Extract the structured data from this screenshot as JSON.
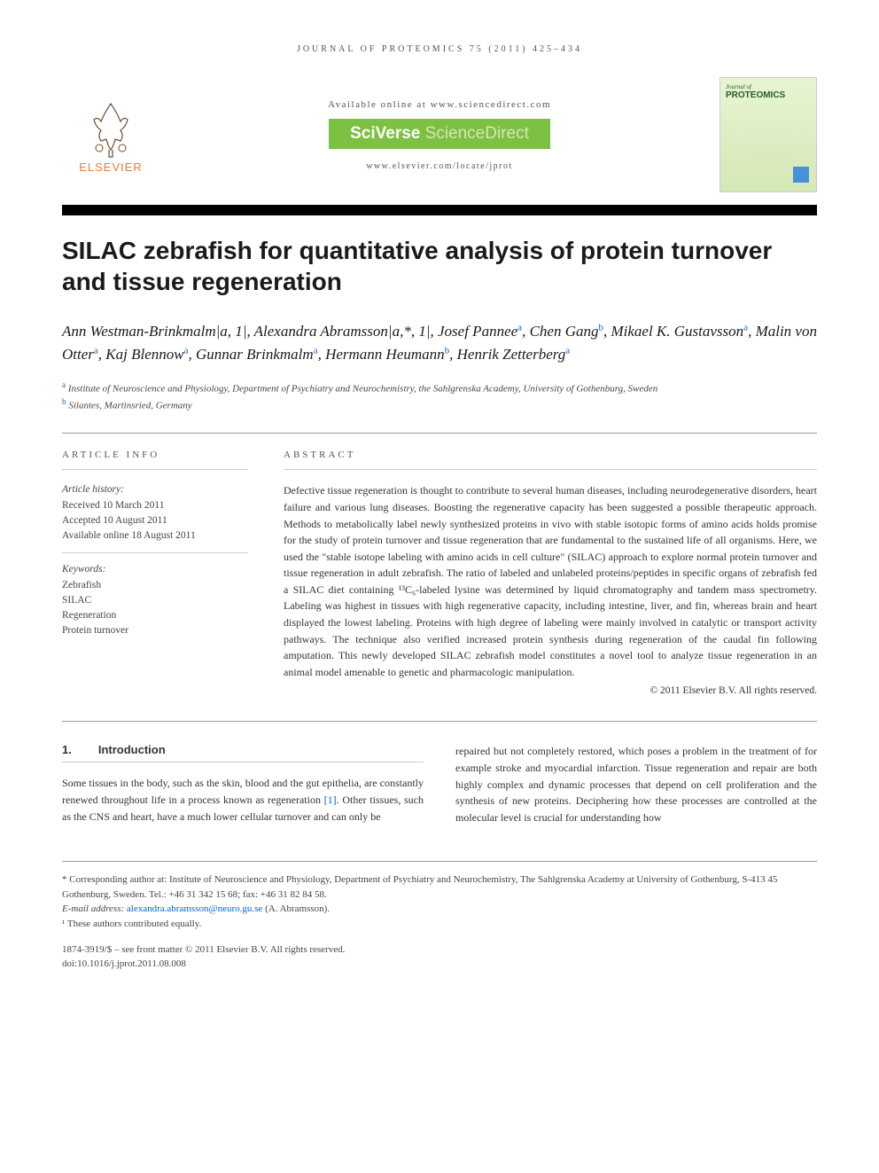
{
  "journal_ref": "JOURNAL OF PROTEOMICS 75 (2011) 425–434",
  "header": {
    "available": "Available online at www.sciencedirect.com",
    "sciverse_a": "SciVerse",
    "sciverse_b": "ScienceDirect",
    "journal_url": "www.elsevier.com/locate/jprot",
    "elsevier": "ELSEVIER",
    "cover_title": "PROTEOMICS",
    "cover_pre": "Journal of"
  },
  "title": "SILAC zebrafish for quantitative analysis of protein turnover and tissue regeneration",
  "authors_html": "Ann Westman-Brinkmalm|a, 1|, Alexandra Abramsson|a,*, 1|, Josef Pannee|a|, Chen Gang|b|, Mikael K. Gustavsson|a|, Malin von Otter|a|, Kaj Blennow|a|, Gunnar Brinkmalm|a|, Hermann Heumann|b|, Henrik Zetterberg|a|",
  "affiliations": {
    "a": "Institute of Neuroscience and Physiology, Department of Psychiatry and Neurochemistry, the Sahlgrenska Academy, University of Gothenburg, Sweden",
    "b": "Silantes, Martinsried, Germany"
  },
  "article_info": {
    "label": "ARTICLE INFO",
    "history_label": "Article history:",
    "received": "Received 10 March 2011",
    "accepted": "Accepted 10 August 2011",
    "online": "Available online 18 August 2011",
    "keywords_label": "Keywords:",
    "keywords": [
      "Zebrafish",
      "SILAC",
      "Regeneration",
      "Protein turnover"
    ]
  },
  "abstract": {
    "label": "ABSTRACT",
    "text": "Defective tissue regeneration is thought to contribute to several human diseases, including neurodegenerative disorders, heart failure and various lung diseases. Boosting the regenerative capacity has been suggested a possible therapeutic approach. Methods to metabolically label newly synthesized proteins in vivo with stable isotopic forms of amino acids holds promise for the study of protein turnover and tissue regeneration that are fundamental to the sustained life of all organisms. Here, we used the \"stable isotope labeling with amino acids in cell culture\" (SILAC) approach to explore normal protein turnover and tissue regeneration in adult zebrafish. The ratio of labeled and unlabeled proteins/peptides in specific organs of zebrafish fed a SILAC diet containing ¹³C₆-labeled lysine was determined by liquid chromatography and tandem mass spectrometry. Labeling was highest in tissues with high regenerative capacity, including intestine, liver, and fin, whereas brain and heart displayed the lowest labeling. Proteins with high degree of labeling were mainly involved in catalytic or transport activity pathways. The technique also verified increased protein synthesis during regeneration of the caudal fin following amputation. This newly developed SILAC zebrafish model constitutes a novel tool to analyze tissue regeneration in an animal model amenable to genetic and pharmacologic manipulation.",
    "copyright": "© 2011 Elsevier B.V. All rights reserved."
  },
  "intro": {
    "num": "1.",
    "heading": "Introduction",
    "col1": "Some tissues in the body, such as the skin, blood and the gut epithelia, are constantly renewed throughout life in a process known as regeneration [1]. Other tissues, such as the CNS and heart, have a much lower cellular turnover and can only be",
    "col2": "repaired but not completely restored, which poses a problem in the treatment of for example stroke and myocardial infarction. Tissue regeneration and repair are both highly complex and dynamic processes that depend on cell proliferation and the synthesis of new proteins. Deciphering how these processes are controlled at the molecular level is crucial for understanding how"
  },
  "footnotes": {
    "corresponding": "* Corresponding author at: Institute of Neuroscience and Physiology, Department of Psychiatry and Neurochemistry, The Sahlgrenska Academy at University of Gothenburg, S-413 45 Gothenburg, Sweden. Tel.: +46 31 342 15 68; fax: +46 31 82 84 58.",
    "email_label": "E-mail address:",
    "email": "alexandra.abramsson@neuro.gu.se",
    "email_who": "(A. Abramsson).",
    "equal": "¹ These authors contributed equally."
  },
  "footer": {
    "issn": "1874-3919/$ – see front matter © 2011 Elsevier B.V. All rights reserved.",
    "doi": "doi:10.1016/j.jprot.2011.08.008"
  },
  "colors": {
    "accent_orange": "#ed7d31",
    "accent_green": "#7cc142",
    "link_blue": "#0066cc",
    "text": "#333333"
  }
}
